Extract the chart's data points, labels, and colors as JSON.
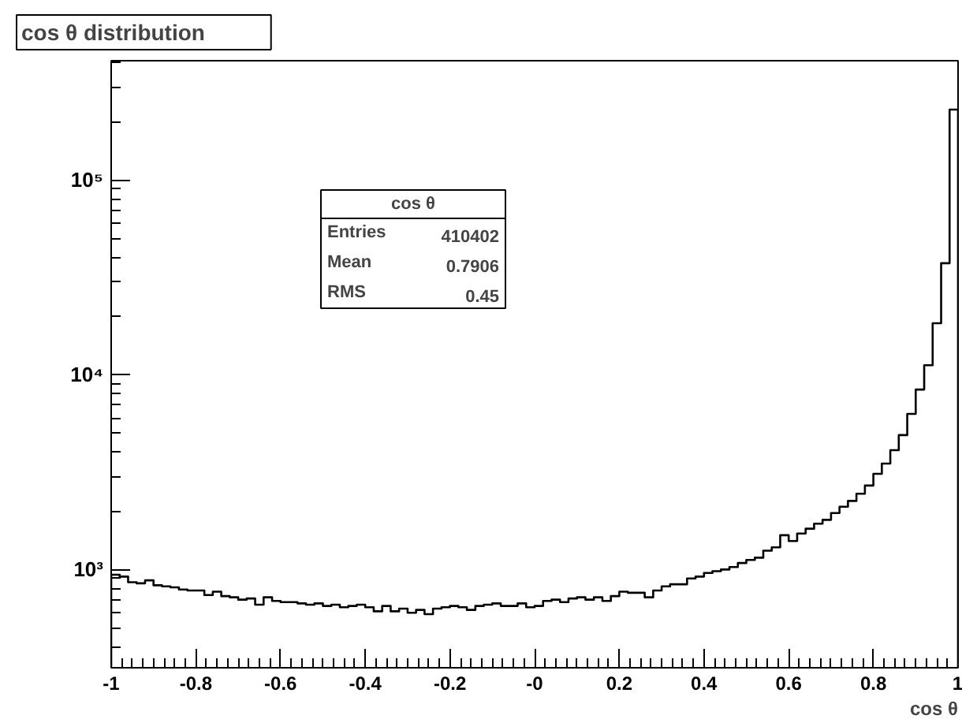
{
  "chart_data": {
    "type": "histogram",
    "title": "cos θ distribution",
    "xlabel": "cos θ",
    "bins": [
      -1,
      -0.98,
      -0.96,
      -0.94,
      -0.92,
      -0.9,
      -0.88,
      -0.86,
      -0.84,
      -0.82,
      -0.8,
      -0.78,
      -0.76,
      -0.74,
      -0.72,
      -0.7,
      -0.68,
      -0.66,
      -0.64,
      -0.62,
      -0.6,
      -0.58,
      -0.56,
      -0.54,
      -0.52,
      -0.5,
      -0.48,
      -0.46,
      -0.44,
      -0.42,
      -0.4,
      -0.38,
      -0.36,
      -0.34,
      -0.32,
      -0.3,
      -0.28,
      -0.26,
      -0.24,
      -0.22,
      -0.2,
      -0.18,
      -0.16,
      -0.14,
      -0.12,
      -0.1,
      -0.08,
      -0.06,
      -0.04,
      -0.02,
      0,
      0.02,
      0.04,
      0.06,
      0.08,
      0.1,
      0.12,
      0.14,
      0.16,
      0.18,
      0.2,
      0.22,
      0.24,
      0.26,
      0.28,
      0.3,
      0.32,
      0.34,
      0.36,
      0.38,
      0.4,
      0.42,
      0.44,
      0.46,
      0.48,
      0.5,
      0.52,
      0.54,
      0.56,
      0.58,
      0.6,
      0.62,
      0.64,
      0.66,
      0.68,
      0.7,
      0.72,
      0.74,
      0.76,
      0.78,
      0.8,
      0.82,
      0.84,
      0.86,
      0.88,
      0.9,
      0.92,
      0.94,
      0.96,
      0.98,
      1
    ],
    "values": [
      940,
      920,
      860,
      850,
      880,
      830,
      820,
      810,
      790,
      780,
      780,
      740,
      770,
      730,
      720,
      700,
      710,
      660,
      720,
      690,
      680,
      680,
      670,
      660,
      670,
      650,
      660,
      640,
      650,
      660,
      640,
      610,
      650,
      610,
      630,
      600,
      620,
      590,
      630,
      640,
      650,
      640,
      620,
      650,
      660,
      670,
      650,
      650,
      670,
      640,
      650,
      690,
      700,
      680,
      710,
      720,
      700,
      720,
      690,
      730,
      770,
      760,
      760,
      720,
      780,
      820,
      840,
      840,
      900,
      920,
      960,
      980,
      1000,
      1030,
      1080,
      1120,
      1150,
      1250,
      1300,
      1500,
      1400,
      1530,
      1620,
      1720,
      1800,
      1950,
      2100,
      2250,
      2450,
      2700,
      3100,
      3500,
      4100,
      4900,
      6300,
      8400,
      11200,
      18400,
      37400,
      230000
    ],
    "color": "#000000",
    "log": "y",
    "grid": false,
    "xlim": [
      -1,
      1
    ],
    "ylim": [
      313,
      410000
    ],
    "xticks": [
      -1,
      -0.8,
      -0.6,
      -0.4,
      -0.2,
      {
        "value": 0,
        "label": "-0"
      },
      0.2,
      0.4,
      0.6,
      0.8,
      1
    ],
    "yticks": [
      {
        "value": 1000,
        "label": "10³"
      },
      {
        "value": 10000,
        "label": "10⁴"
      },
      {
        "value": 100000,
        "label": "10⁵"
      }
    ],
    "annotations": [
      "cos θ",
      "Entries",
      "410402",
      "Mean",
      "0.7906",
      "RMS",
      "0.45"
    ]
  }
}
